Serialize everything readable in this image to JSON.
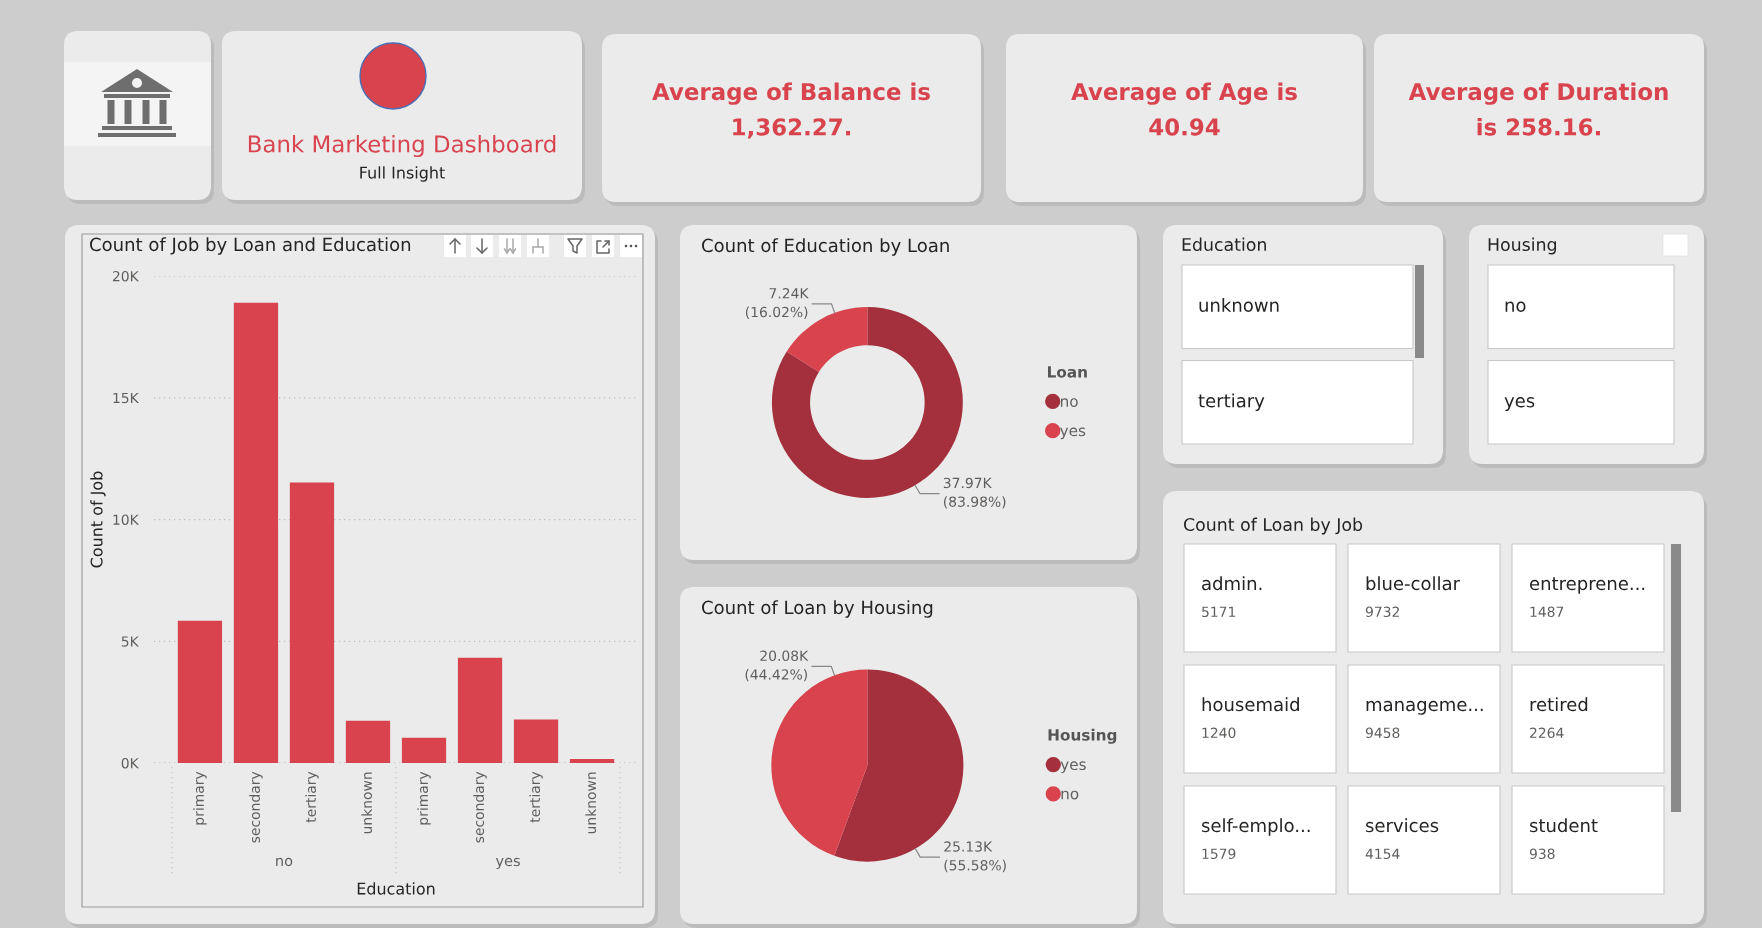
{
  "chart_data": [
    {
      "type": "other",
      "title": "Bank Marketing Dashboard",
      "subtitle": "Full Insight"
    },
    {
      "type": "other",
      "title": "Average of Balance is 1,362.27."
    },
    {
      "type": "other",
      "title": "Average of Age is 40.94"
    },
    {
      "type": "other",
      "title": "Average of Duration is 258.16."
    },
    {
      "type": "bar",
      "title": "Count of Job by Loan and Education",
      "xlabel": "Education",
      "ylabel": "Count of Job",
      "categories": [
        "primary",
        "secondary",
        "tertiary",
        "unknown",
        "primary",
        "secondary",
        "tertiary",
        "unknown"
      ],
      "values": [
        5840,
        18900,
        11520,
        1740,
        1040,
        4320,
        1790,
        160
      ],
      "color": "#d8434e",
      "ylim": [
        0,
        20000
      ],
      "yticks": [
        {
          "value": 0,
          "label": "0K"
        },
        {
          "value": 5000,
          "label": "5K"
        },
        {
          "value": 10000,
          "label": "10K"
        },
        {
          "value": 15000,
          "label": "15K"
        },
        {
          "value": 20000,
          "label": "20K"
        }
      ],
      "grid": "y",
      "annotations": [
        "no",
        "yes"
      ]
    },
    {
      "type": "donut",
      "title": "Count of Education by Loan",
      "categories": [
        "no",
        "yes"
      ],
      "values": [
        37970,
        7240
      ],
      "colors": [
        "#a3303c",
        "#d8434e"
      ],
      "value_labels": [
        "37.97K (83.98%)",
        "7.24K (16.02%)"
      ],
      "legend_title": "Loan",
      "legend": "right"
    },
    {
      "type": "other",
      "title": "Education",
      "categories": [
        "unknown",
        "tertiary"
      ]
    },
    {
      "type": "other",
      "title": "Housing",
      "categories": [
        "no",
        "yes"
      ]
    },
    {
      "type": "pie",
      "title": "Count of Loan by Housing",
      "categories": [
        "yes",
        "no"
      ],
      "values": [
        25130,
        20080
      ],
      "colors": [
        "#a3303c",
        "#d8434e"
      ],
      "value_labels": [
        "25.13K (55.58%)",
        "20.08K (44.42%)"
      ],
      "legend_title": "Housing",
      "legend": "right"
    },
    {
      "type": "other",
      "title": "Count of Loan by Job",
      "categories": [
        "admin.",
        "blue-collar",
        "entreprene...",
        "housemaid",
        "manageme...",
        "retired",
        "self-emplo...",
        "services",
        "student"
      ],
      "values": [
        5171,
        9732,
        1487,
        1240,
        9458,
        2264,
        1579,
        4154,
        938
      ],
      "data_labels": true
    }
  ]
}
